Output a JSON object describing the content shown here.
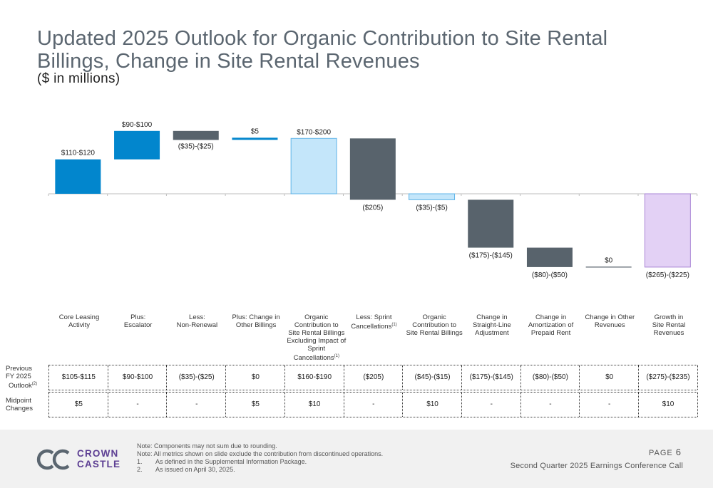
{
  "title": "Updated 2025 Outlook for Organic Contribution to Site Rental Billings, Change in Site Rental Revenues",
  "subtitle": "($ in millions)",
  "colors": {
    "blue": "#0286cd",
    "light_blue": "#c4e6fa",
    "dark_gray": "#58636c",
    "lavender": "#e3d1f5",
    "purple": "#5d3f93"
  },
  "chart_data": {
    "type": "bar",
    "subtype": "waterfall",
    "categories": [
      "Core Leasing Activity",
      "Plus: Escalator",
      "Less: Non-Renewal",
      "Plus: Change in Other Billings",
      "Organic Contribution to Site Rental Billings Excluding Impact of Sprint Cancellations",
      "Less: Sprint Cancellations",
      "Organic Contribution to Site Rental Billings",
      "Change in Straight-Line Adjustment",
      "Change in Amortization of Prepaid Rent",
      "Change in Other Revenues",
      "Growth in Site Rental Revenues"
    ],
    "bars": [
      {
        "label": "$110-$120",
        "start": 0,
        "end": 115,
        "kind": "increase",
        "color": "#0286cd",
        "label_pos": "above"
      },
      {
        "label": "$90-$100",
        "start": 115,
        "end": 210,
        "kind": "increase",
        "color": "#0286cd",
        "label_pos": "above"
      },
      {
        "label": "($35)-($25)",
        "start": 210,
        "end": 180,
        "kind": "decrease",
        "color": "#58636c",
        "label_pos": "below"
      },
      {
        "label": "$5",
        "start": 180,
        "end": 185,
        "kind": "increase",
        "color": "#0286cd",
        "label_pos": "above"
      },
      {
        "label": "$170-$200",
        "start": 0,
        "end": 185,
        "kind": "total",
        "color": "#c4e6fa",
        "label_pos": "above"
      },
      {
        "label": "($205)",
        "start": 185,
        "end": -20,
        "kind": "decrease",
        "color": "#58636c",
        "label_pos": "below"
      },
      {
        "label": "($35)-($5)",
        "start": 0,
        "end": -20,
        "kind": "total",
        "color": "#c4e6fa",
        "label_pos": "below"
      },
      {
        "label": "($175)-($145)",
        "start": -20,
        "end": -180,
        "kind": "decrease",
        "color": "#58636c",
        "label_pos": "below"
      },
      {
        "label": "($80)-($50)",
        "start": -180,
        "end": -245,
        "kind": "decrease",
        "color": "#58636c",
        "label_pos": "below"
      },
      {
        "label": "$0",
        "start": -245,
        "end": -245,
        "kind": "zero",
        "color": "#58636c",
        "label_pos": "above"
      },
      {
        "label": "($265)-($225)",
        "start": 0,
        "end": -245,
        "kind": "total",
        "color": "#e3d1f5",
        "label_pos": "below"
      }
    ],
    "ylim": [
      -245,
      210
    ],
    "grid": false,
    "legend": "none"
  },
  "categories_display": [
    [
      "Core Leasing",
      "Activity"
    ],
    [
      "Plus:",
      "Escalator"
    ],
    [
      "Less:",
      "Non-Renewal"
    ],
    [
      "Plus: Change in",
      "Other Billings"
    ],
    [
      "Organic",
      "Contribution to",
      "Site Rental Billings",
      "Excluding Impact of",
      "Sprint Cancellations"
    ],
    [
      "Less: Sprint",
      "Cancellations"
    ],
    [
      "Organic",
      "Contribution to",
      "Site Rental Billings"
    ],
    [
      "Change in",
      "Straight-Line",
      "Adjustment"
    ],
    [
      "Change in",
      "Amortization of",
      "Prepaid Rent"
    ],
    [
      "Change in Other",
      "Revenues"
    ],
    [
      "Growth in",
      "Site Rental",
      "Revenues"
    ]
  ],
  "footnote_marks": {
    "sprint_excl": "(1)",
    "sprint_canc": "(1)",
    "prev_outlook": "(2)"
  },
  "table": {
    "rows": [
      {
        "label_lines": [
          "Previous",
          "FY 2025",
          "Outlook"
        ],
        "values": [
          "$105-$115",
          "$90-$100",
          "($35)-($25)",
          "$0",
          "$160-$190",
          "($205)",
          "($45)-($15)",
          "($175)-($145)",
          "($80)-($50)",
          "$0",
          "($275)-($235)"
        ]
      },
      {
        "label_lines": [
          "Midpoint",
          "Changes"
        ],
        "values": [
          "$5",
          "-",
          "-",
          "$5",
          "$10",
          "-",
          "$10",
          "-",
          "-",
          "-",
          "$10"
        ]
      }
    ]
  },
  "footer": {
    "logo_line1": "CROWN",
    "logo_line2": "CASTLE",
    "notes": [
      "Note: Components may not sum due to rounding.",
      "Note: All metrics shown on slide exclude the contribution from discontinued operations."
    ],
    "footnotes": [
      {
        "num": "1.",
        "text": "As defined in the Supplemental Information Package."
      },
      {
        "num": "2.",
        "text": "As issued on April 30, 2025."
      }
    ],
    "page_label": "PAGE",
    "page_number": "6",
    "event": "Second Quarter 2025 Earnings Conference Call"
  }
}
